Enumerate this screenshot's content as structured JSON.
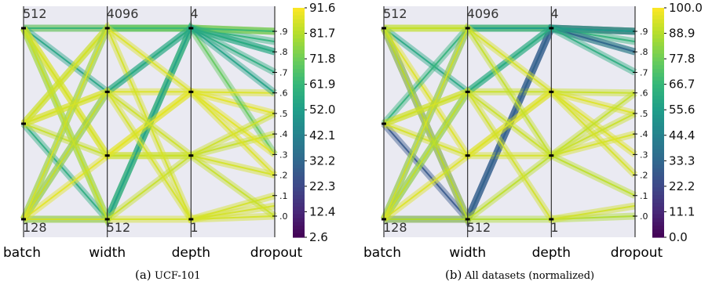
{
  "chart_data": [
    {
      "type": "parallel_coordinates",
      "caption_label": "(a)",
      "caption_text": "UCF-101",
      "axes": [
        {
          "name": "batch",
          "top_label": "512",
          "bottom_label": "128",
          "values": [
            128,
            256,
            512
          ]
        },
        {
          "name": "width",
          "top_label": "4096",
          "bottom_label": "512",
          "values": [
            512,
            1024,
            2048,
            4096
          ]
        },
        {
          "name": "depth",
          "top_label": "4",
          "bottom_label": "1",
          "values": [
            1,
            2,
            3,
            4
          ]
        },
        {
          "name": "dropout",
          "ticks": [
            ".0",
            ".1",
            ".2",
            ".3",
            ".4",
            ".5",
            ".6",
            ".7",
            ".8",
            ".9"
          ],
          "values": [
            0.0,
            0.9
          ]
        }
      ],
      "colorbar": {
        "colormap": "viridis",
        "min": 2.6,
        "max": 91.6,
        "ticks": [
          "91.6",
          "81.7",
          "71.8",
          "61.9",
          "52.0",
          "42.1",
          "32.2",
          "22.3",
          "12.4",
          "2.6"
        ]
      },
      "lines": [
        {
          "batch": 512,
          "width": 4096,
          "depth": 4,
          "dropout": 0.9,
          "value": 85
        },
        {
          "batch": 512,
          "width": 4096,
          "depth": 4,
          "dropout": 0.85,
          "value": 60
        },
        {
          "batch": 512,
          "width": 2048,
          "depth": 4,
          "dropout": 0.8,
          "value": 55
        },
        {
          "batch": 512,
          "width": 1024,
          "depth": 3,
          "dropout": 0.5,
          "value": 88
        },
        {
          "batch": 512,
          "width": 512,
          "depth": 4,
          "dropout": 0.3,
          "value": 70
        },
        {
          "batch": 512,
          "width": 1024,
          "depth": 2,
          "dropout": 0.2,
          "value": 86
        },
        {
          "batch": 256,
          "width": 4096,
          "depth": 4,
          "dropout": 0.9,
          "value": 82
        },
        {
          "batch": 256,
          "width": 2048,
          "depth": 3,
          "dropout": 0.6,
          "value": 87
        },
        {
          "batch": 256,
          "width": 512,
          "depth": 4,
          "dropout": 0.7,
          "value": 58
        },
        {
          "batch": 256,
          "width": 1024,
          "depth": 2,
          "dropout": 0.4,
          "value": 84
        },
        {
          "batch": 256,
          "width": 4096,
          "depth": 1,
          "dropout": 0.1,
          "value": 86
        },
        {
          "batch": 128,
          "width": 4096,
          "depth": 4,
          "dropout": 0.9,
          "value": 62
        },
        {
          "batch": 128,
          "width": 2048,
          "depth": 4,
          "dropout": 0.8,
          "value": 57
        },
        {
          "batch": 128,
          "width": 512,
          "depth": 4,
          "dropout": 0.6,
          "value": 54
        },
        {
          "batch": 128,
          "width": 512,
          "depth": 1,
          "dropout": 0.0,
          "value": 86
        },
        {
          "batch": 128,
          "width": 1024,
          "depth": 3,
          "dropout": 0.3,
          "value": 88
        },
        {
          "batch": 128,
          "width": 2048,
          "depth": 2,
          "dropout": 0.5,
          "value": 85
        },
        {
          "batch": 128,
          "width": 4096,
          "depth": 3,
          "dropout": 0.2,
          "value": 87
        },
        {
          "batch": 512,
          "width": 512,
          "depth": 2,
          "dropout": 0.0,
          "value": 84
        },
        {
          "batch": 256,
          "width": 2048,
          "depth": 1,
          "dropout": 0.05,
          "value": 86
        }
      ]
    },
    {
      "type": "parallel_coordinates",
      "caption_label": "(b)",
      "caption_text": "All datasets (normalized)",
      "axes": [
        {
          "name": "batch",
          "top_label": "512",
          "bottom_label": "128",
          "values": [
            128,
            256,
            512
          ]
        },
        {
          "name": "width",
          "top_label": "4096",
          "bottom_label": "512",
          "values": [
            512,
            1024,
            2048,
            4096
          ]
        },
        {
          "name": "depth",
          "top_label": "4",
          "bottom_label": "1",
          "values": [
            1,
            2,
            3,
            4
          ]
        },
        {
          "name": "dropout",
          "ticks": [
            ".0",
            ".1",
            ".2",
            ".3",
            ".4",
            ".5",
            ".6",
            ".7",
            ".8",
            ".9"
          ],
          "values": [
            0.0,
            0.9
          ]
        }
      ],
      "colorbar": {
        "colormap": "viridis",
        "min": 0.0,
        "max": 100.0,
        "ticks": [
          "100.0",
          "88.9",
          "77.8",
          "66.7",
          "55.6",
          "44.4",
          "33.3",
          "22.2",
          "11.1",
          "0.0"
        ]
      },
      "lines": [
        {
          "batch": 512,
          "width": 4096,
          "depth": 4,
          "dropout": 0.9,
          "value": 90
        },
        {
          "batch": 512,
          "width": 512,
          "depth": 4,
          "dropout": 0.9,
          "value": 30
        },
        {
          "batch": 512,
          "width": 2048,
          "depth": 4,
          "dropout": 0.8,
          "value": 60
        },
        {
          "batch": 512,
          "width": 1024,
          "depth": 3,
          "dropout": 0.5,
          "value": 95
        },
        {
          "batch": 256,
          "width": 512,
          "depth": 4,
          "dropout": 0.9,
          "value": 28
        },
        {
          "batch": 256,
          "width": 2048,
          "depth": 3,
          "dropout": 0.6,
          "value": 92
        },
        {
          "batch": 256,
          "width": 4096,
          "depth": 4,
          "dropout": 0.85,
          "value": 65
        },
        {
          "batch": 256,
          "width": 1024,
          "depth": 2,
          "dropout": 0.4,
          "value": 94
        },
        {
          "batch": 128,
          "width": 512,
          "depth": 4,
          "dropout": 0.8,
          "value": 32
        },
        {
          "batch": 128,
          "width": 4096,
          "depth": 4,
          "dropout": 0.9,
          "value": 55
        },
        {
          "batch": 128,
          "width": 2048,
          "depth": 4,
          "dropout": 0.7,
          "value": 62
        },
        {
          "batch": 128,
          "width": 512,
          "depth": 1,
          "dropout": 0.0,
          "value": 88
        },
        {
          "batch": 128,
          "width": 1024,
          "depth": 3,
          "dropout": 0.3,
          "value": 95
        },
        {
          "batch": 128,
          "width": 2048,
          "depth": 2,
          "dropout": 0.5,
          "value": 92
        },
        {
          "batch": 512,
          "width": 512,
          "depth": 2,
          "dropout": 0.1,
          "value": 90
        },
        {
          "batch": 256,
          "width": 2048,
          "depth": 1,
          "dropout": 0.05,
          "value": 93
        },
        {
          "batch": 128,
          "width": 4096,
          "depth": 3,
          "dropout": 0.2,
          "value": 94
        },
        {
          "batch": 512,
          "width": 4096,
          "depth": 2,
          "dropout": 0.6,
          "value": 91
        }
      ]
    }
  ]
}
